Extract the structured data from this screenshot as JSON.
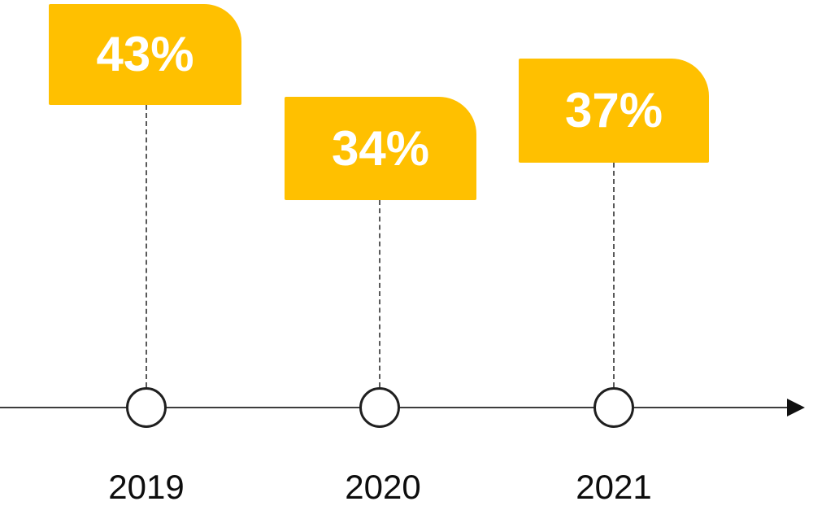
{
  "chart_data": {
    "type": "bar",
    "variant": "timeline-milestone",
    "title": "",
    "categories": [
      "2019",
      "2020",
      "2021"
    ],
    "values": [
      43,
      34,
      37
    ],
    "unit": "%",
    "milestones": [
      {
        "year": "2019",
        "value": 43,
        "value_label": "43%"
      },
      {
        "year": "2020",
        "value": 34,
        "value_label": "34%"
      },
      {
        "year": "2021",
        "value": 37,
        "value_label": "37%"
      }
    ],
    "xlabel": "",
    "ylabel": "",
    "legend": false,
    "grid": false,
    "axis": {
      "orientation": "horizontal",
      "arrow": "right",
      "y_position": "bottom"
    },
    "notes": "Gold callout boxes with rounded top-right corner, dashed connectors to circular markers on an arrowed timeline axis"
  },
  "colors": {
    "label_box": "#FFC000",
    "label_text": "#FFFFFF",
    "connector": "#595959",
    "axis": "#3D3D3D",
    "marker_fill": "#FFFFFF",
    "marker_stroke": "#1F1F1F",
    "year_text": "#0D0D0D"
  }
}
